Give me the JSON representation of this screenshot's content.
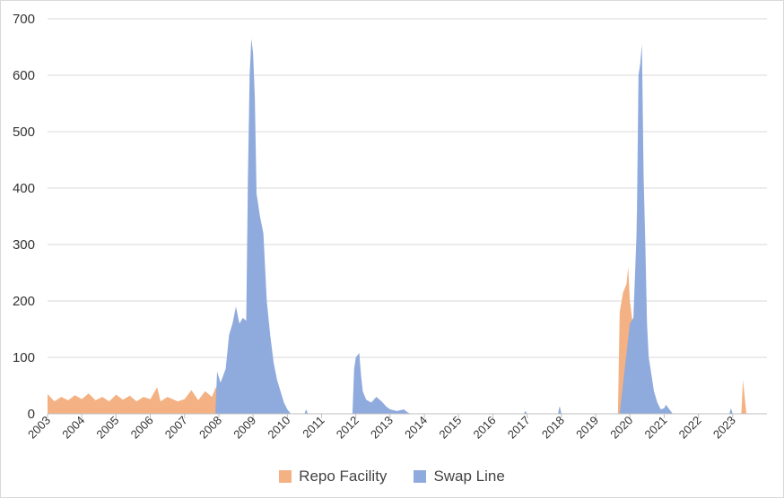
{
  "chart_data": {
    "type": "area",
    "title": "",
    "xlabel": "",
    "ylabel": "",
    "ylim": [
      0,
      700
    ],
    "xlim": [
      2003.0,
      2024.0
    ],
    "yticks": [
      "0",
      "100",
      "200",
      "300",
      "400",
      "500",
      "600",
      "700"
    ],
    "xticks": [
      "2003",
      "2004",
      "2005",
      "2006",
      "2007",
      "2008",
      "2009",
      "2010",
      "2011",
      "2012",
      "2013",
      "2014",
      "2015",
      "2016",
      "2017",
      "2018",
      "2019",
      "2020",
      "2021",
      "2022",
      "2023"
    ],
    "grid": true,
    "legend_position": "bottom",
    "series": [
      {
        "name": "Repo Facility",
        "color": "#f4b183",
        "points": [
          [
            2003.0,
            35
          ],
          [
            2003.2,
            22
          ],
          [
            2003.4,
            30
          ],
          [
            2003.6,
            24
          ],
          [
            2003.8,
            33
          ],
          [
            2004.0,
            26
          ],
          [
            2004.2,
            36
          ],
          [
            2004.4,
            24
          ],
          [
            2004.6,
            30
          ],
          [
            2004.8,
            22
          ],
          [
            2005.0,
            34
          ],
          [
            2005.2,
            25
          ],
          [
            2005.4,
            32
          ],
          [
            2005.6,
            22
          ],
          [
            2005.8,
            30
          ],
          [
            2006.0,
            26
          ],
          [
            2006.2,
            47
          ],
          [
            2006.3,
            22
          ],
          [
            2006.5,
            30
          ],
          [
            2006.8,
            22
          ],
          [
            2007.0,
            26
          ],
          [
            2007.2,
            42
          ],
          [
            2007.4,
            24
          ],
          [
            2007.6,
            40
          ],
          [
            2007.8,
            30
          ],
          [
            2007.9,
            45
          ],
          [
            2008.0,
            52
          ],
          [
            2008.1,
            60
          ],
          [
            2008.2,
            48
          ],
          [
            2008.35,
            90
          ],
          [
            2008.45,
            120
          ],
          [
            2008.55,
            125
          ],
          [
            2008.7,
            112
          ],
          [
            2008.85,
            100
          ],
          [
            2008.9,
            80
          ],
          [
            2009.05,
            80
          ],
          [
            2009.08,
            0
          ],
          [
            2019.65,
            0
          ],
          [
            2019.7,
            180
          ],
          [
            2019.8,
            215
          ],
          [
            2019.9,
            230
          ],
          [
            2019.95,
            260
          ],
          [
            2020.0,
            200
          ],
          [
            2020.1,
            150
          ],
          [
            2020.15,
            130
          ],
          [
            2020.2,
            355
          ],
          [
            2020.25,
            280
          ],
          [
            2020.3,
            160
          ],
          [
            2020.35,
            0
          ],
          [
            2023.25,
            0
          ],
          [
            2023.3,
            60
          ],
          [
            2023.4,
            0
          ],
          [
            2024.0,
            0
          ]
        ]
      },
      {
        "name": "Swap Line",
        "color": "#8faadc",
        "points": [
          [
            2003.0,
            0
          ],
          [
            2007.9,
            0
          ],
          [
            2007.95,
            75
          ],
          [
            2008.05,
            55
          ],
          [
            2008.2,
            80
          ],
          [
            2008.3,
            140
          ],
          [
            2008.4,
            160
          ],
          [
            2008.5,
            190
          ],
          [
            2008.6,
            160
          ],
          [
            2008.7,
            170
          ],
          [
            2008.8,
            165
          ],
          [
            2008.85,
            420
          ],
          [
            2008.9,
            600
          ],
          [
            2008.95,
            665
          ],
          [
            2009.0,
            640
          ],
          [
            2009.05,
            560
          ],
          [
            2009.1,
            390
          ],
          [
            2009.2,
            350
          ],
          [
            2009.3,
            320
          ],
          [
            2009.4,
            200
          ],
          [
            2009.5,
            140
          ],
          [
            2009.6,
            90
          ],
          [
            2009.7,
            60
          ],
          [
            2009.8,
            40
          ],
          [
            2009.9,
            20
          ],
          [
            2010.0,
            8
          ],
          [
            2010.1,
            0
          ],
          [
            2010.5,
            0
          ],
          [
            2010.55,
            8
          ],
          [
            2010.6,
            0
          ],
          [
            2011.9,
            0
          ],
          [
            2011.95,
            80
          ],
          [
            2012.0,
            100
          ],
          [
            2012.1,
            108
          ],
          [
            2012.15,
            70
          ],
          [
            2012.2,
            40
          ],
          [
            2012.3,
            25
          ],
          [
            2012.45,
            20
          ],
          [
            2012.6,
            30
          ],
          [
            2012.75,
            22
          ],
          [
            2012.9,
            12
          ],
          [
            2013.0,
            8
          ],
          [
            2013.2,
            5
          ],
          [
            2013.4,
            8
          ],
          [
            2013.5,
            3
          ],
          [
            2013.6,
            0
          ],
          [
            2016.9,
            0
          ],
          [
            2016.95,
            5
          ],
          [
            2017.0,
            0
          ],
          [
            2017.9,
            0
          ],
          [
            2017.95,
            14
          ],
          [
            2018.0,
            0
          ],
          [
            2019.7,
            0
          ],
          [
            2020.0,
            160
          ],
          [
            2020.1,
            170
          ],
          [
            2020.2,
            330
          ],
          [
            2020.25,
            600
          ],
          [
            2020.3,
            620
          ],
          [
            2020.35,
            655
          ],
          [
            2020.4,
            420
          ],
          [
            2020.45,
            300
          ],
          [
            2020.5,
            160
          ],
          [
            2020.55,
            100
          ],
          [
            2020.6,
            80
          ],
          [
            2020.7,
            40
          ],
          [
            2020.8,
            20
          ],
          [
            2020.9,
            8
          ],
          [
            2021.0,
            10
          ],
          [
            2021.05,
            16
          ],
          [
            2021.15,
            8
          ],
          [
            2021.25,
            0
          ],
          [
            2022.9,
            0
          ],
          [
            2022.95,
            10
          ],
          [
            2023.0,
            0
          ],
          [
            2024.0,
            0
          ]
        ]
      }
    ]
  },
  "legend": [
    {
      "label": "Repo Facility",
      "color": "#f4b183"
    },
    {
      "label": "Swap Line",
      "color": "#8faadc"
    }
  ]
}
